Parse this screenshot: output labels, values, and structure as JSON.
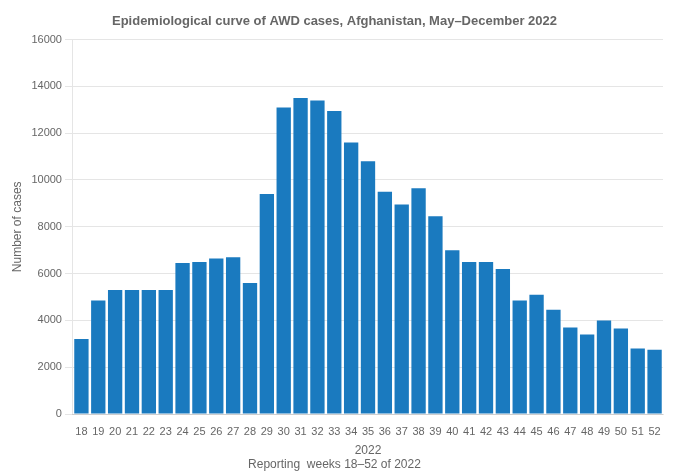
{
  "chart_data": {
    "type": "bar",
    "title": "Epidemiological curve of AWD cases, Afghanistan, May–December 2022",
    "xlabel": "2022",
    "ylabel": "Number of cases",
    "annotations": [
      "Reporting  weeks 18–52 of 2022"
    ],
    "categories": [
      18,
      19,
      20,
      21,
      22,
      23,
      24,
      25,
      26,
      27,
      28,
      29,
      30,
      31,
      32,
      33,
      34,
      35,
      36,
      37,
      38,
      39,
      40,
      41,
      42,
      43,
      44,
      45,
      46,
      47,
      48,
      49,
      50,
      51,
      52
    ],
    "values": [
      3200,
      4850,
      5300,
      5300,
      5300,
      5300,
      6450,
      6500,
      6650,
      6700,
      5600,
      9400,
      13100,
      13500,
      13400,
      12950,
      11600,
      10800,
      9500,
      8950,
      9650,
      8450,
      7000,
      6500,
      6500,
      6200,
      4850,
      5100,
      4450,
      3700,
      3400,
      4000,
      3650,
      2800,
      2750
    ],
    "color": "#1a7abf",
    "ylim": [
      0,
      16000
    ],
    "yticks": [
      0,
      2000,
      4000,
      6000,
      8000,
      10000,
      12000,
      14000,
      16000
    ],
    "grid": true
  }
}
